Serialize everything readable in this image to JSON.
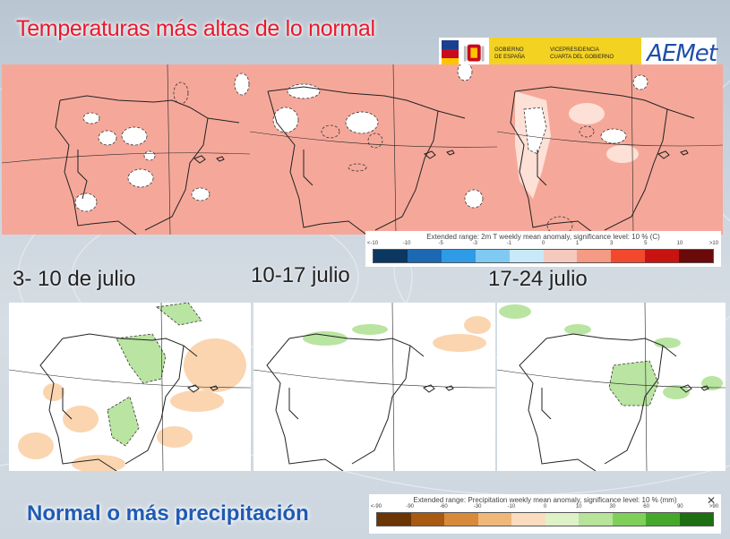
{
  "titles": {
    "temperature": "Temperaturas más altas de lo normal",
    "precipitation": "Normal o más precipitación"
  },
  "logo": {
    "government_line1": "GOBIERNO",
    "government_line2": "DE ESPAÑA",
    "ministry_line1": "VICEPRESIDENCIA",
    "ministry_line2": "CUARTA DEL GOBIERNO",
    "agency": "AEMet",
    "flag_colors": [
      "#c60b1e",
      "#ffc400",
      "#c60b1e"
    ]
  },
  "periods": [
    "3- 10 de julio",
    "10-17 julio",
    "17-24 julio"
  ],
  "temperature_legend": {
    "title": "Extended range: 2m T weekly mean anomaly, significance level: 10 % (C)",
    "ticks": [
      "<-10",
      "-10",
      "-5",
      "-3",
      "-1",
      "0",
      "1",
      "3",
      "5",
      "10",
      ">10"
    ],
    "colors": [
      "#0b3760",
      "#1c68b3",
      "#2f9be6",
      "#7fcaf2",
      "#c8e9f8",
      "#f5c9bd",
      "#f59a84",
      "#f2492e",
      "#c81411",
      "#6b0a0a"
    ]
  },
  "precipitation_legend": {
    "title": "Extended range: Precipitation weekly mean anomaly, significance level: 10 % (mm)",
    "ticks": [
      "<-90",
      "-90",
      "-60",
      "-30",
      "-10",
      "0",
      "10",
      "30",
      "60",
      "90",
      ">90"
    ],
    "colors": [
      "#6b3505",
      "#a85a12",
      "#d88a3a",
      "#f0b878",
      "#fadcbe",
      "#dff1c6",
      "#b7e39a",
      "#7fcf5a",
      "#45a82a",
      "#1e6e12"
    ],
    "close_symbol": "✕"
  },
  "colors": {
    "temp_fill": "#f5a89a",
    "near_normal": "#ffffff",
    "wet": "#b9e4a1",
    "dry": "#fad5b0",
    "land_border": "#222222"
  }
}
